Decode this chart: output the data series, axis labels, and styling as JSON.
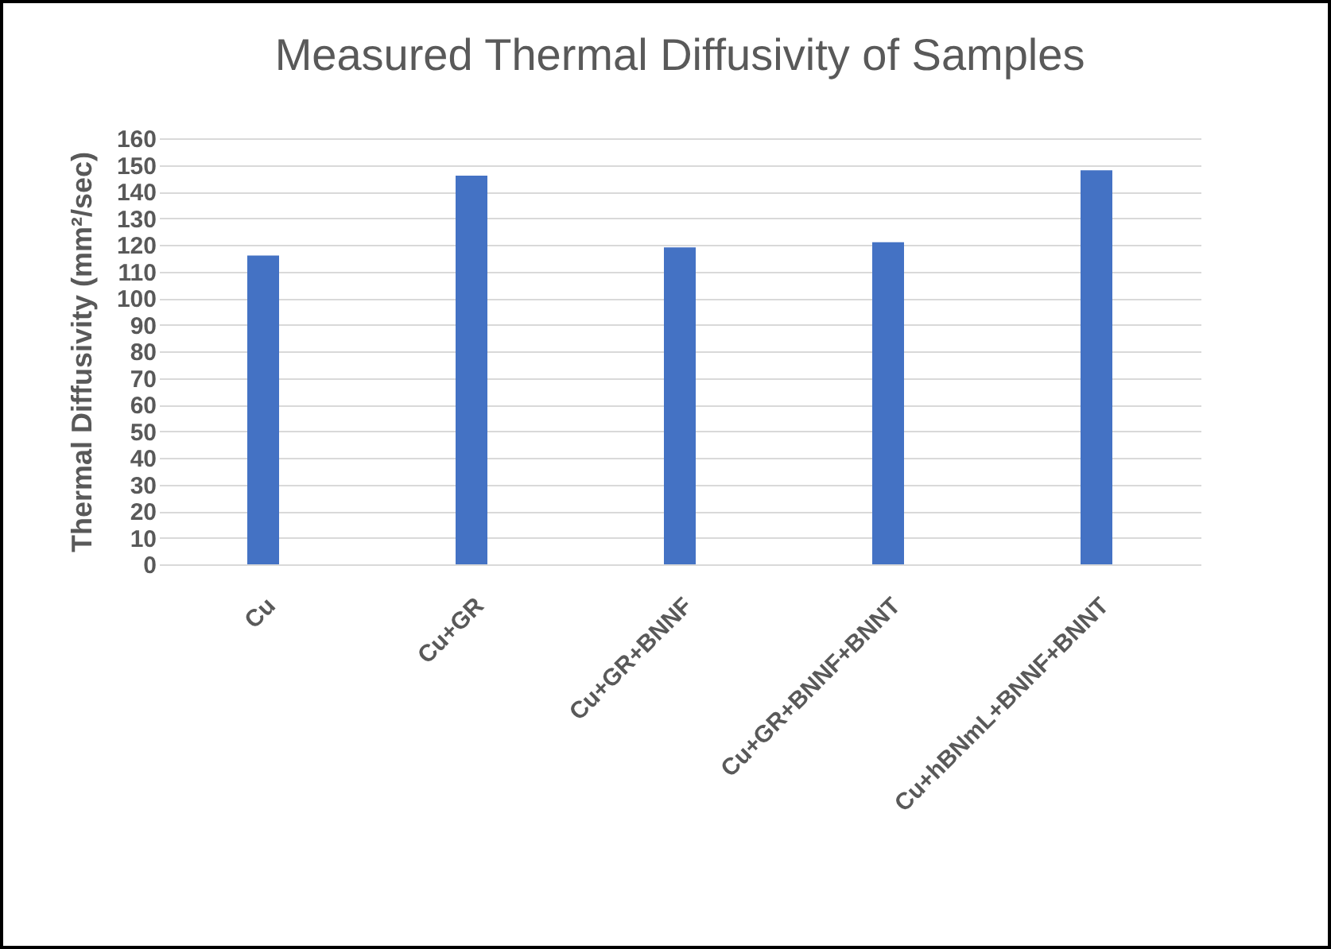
{
  "chart_data": {
    "type": "bar",
    "title": "Measured Thermal Diffusivity of Samples",
    "ylabel": "Thermal Diffusivity (mm²/sec)",
    "categories": [
      "Cu",
      "Cu+GR",
      "Cu+GR+BNNF",
      "Cu+GR+BNNF+BNNT",
      "Cu+hBNmL+BNNF+BNNT"
    ],
    "values": [
      116,
      146,
      119,
      121,
      148
    ],
    "color": "#4472c4",
    "ylim": [
      0,
      160
    ],
    "yticks": [
      0,
      10,
      20,
      30,
      40,
      50,
      60,
      70,
      80,
      90,
      100,
      110,
      120,
      130,
      140,
      150,
      160
    ],
    "grid": "y"
  }
}
